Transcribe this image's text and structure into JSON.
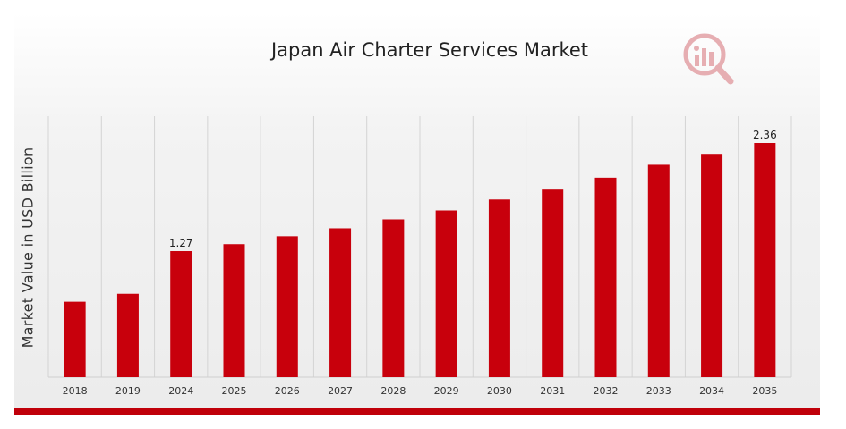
{
  "chart_data": {
    "type": "bar",
    "title": "Japan Air Charter Services Market",
    "ylabel": "Market Value in USD Billion",
    "xlabel": "",
    "categories": [
      "2018",
      "2019",
      "2024",
      "2025",
      "2026",
      "2027",
      "2028",
      "2029",
      "2030",
      "2031",
      "2032",
      "2033",
      "2034",
      "2035"
    ],
    "values": [
      0.76,
      0.84,
      1.27,
      1.34,
      1.42,
      1.5,
      1.59,
      1.68,
      1.79,
      1.89,
      2.01,
      2.14,
      2.25,
      2.36
    ],
    "data_labels": {
      "2024": "1.27",
      "2035": "2.36"
    },
    "ylim": [
      0,
      2.36
    ],
    "grid": "vertical",
    "legend": "none",
    "bar_color": "#c8000c"
  },
  "logo": {
    "icon": "bar-chart-magnifier-icon",
    "color": "#e6aeb2"
  },
  "colors": {
    "accent_band": "#c0000a",
    "gridline": "#d4d4d4"
  }
}
